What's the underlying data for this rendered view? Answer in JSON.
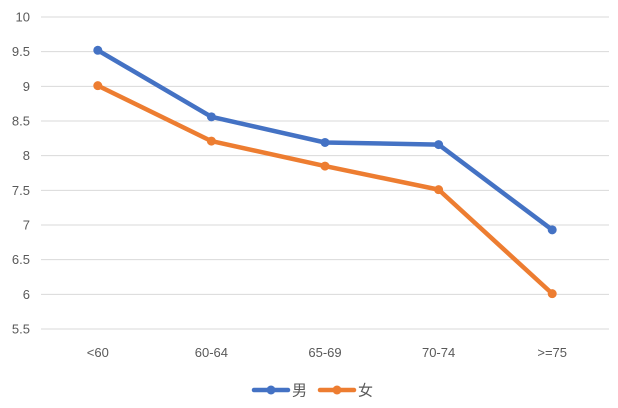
{
  "chart_data": {
    "type": "line",
    "categories": [
      "<60",
      "60-64",
      "65-69",
      "70-74",
      ">=75"
    ],
    "series": [
      {
        "name": "男",
        "color": "#4472C4",
        "values": [
          9.52,
          8.56,
          8.19,
          8.16,
          6.93
        ]
      },
      {
        "name": "女",
        "color": "#ED7D31",
        "values": [
          9.01,
          8.21,
          7.85,
          7.51,
          6.01
        ]
      }
    ],
    "ylim": [
      5.5,
      10
    ],
    "yticks": [
      5.5,
      6,
      6.5,
      7,
      7.5,
      8,
      8.5,
      9,
      9.5,
      10
    ],
    "ytick_labels": [
      "5.5",
      "6",
      "6.5",
      "7",
      "7.5",
      "8",
      "8.5",
      "9",
      "9.5",
      "10"
    ],
    "grid": true,
    "legend_position": "bottom",
    "gridline_color": "#D9D9D9",
    "title": "",
    "xlabel": "",
    "ylabel": ""
  }
}
